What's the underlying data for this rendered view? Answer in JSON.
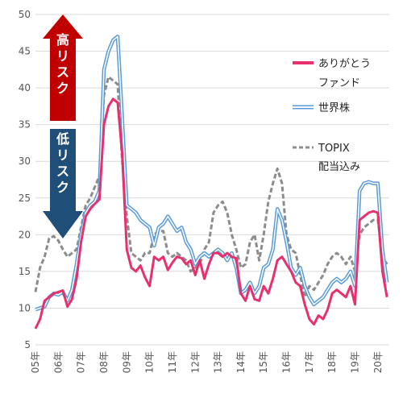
{
  "chart_data": {
    "type": "line",
    "ylim": [
      5,
      50
    ],
    "yticks": [
      5,
      10,
      15,
      20,
      25,
      30,
      35,
      40,
      45,
      50
    ],
    "grid": true,
    "legend_position": "right",
    "xtick_labels": [
      "05年",
      "06年",
      "07年",
      "08年",
      "09年",
      "10年",
      "11年",
      "12年",
      "13年",
      "14年",
      "15年",
      "16年",
      "17年",
      "18年",
      "19年",
      "20年"
    ],
    "risk_labels": {
      "high": "高リスク",
      "low": "低リスク"
    },
    "colors": {
      "arigatou": "#e8306e",
      "world": "#5b9bd5",
      "topix": "#8c8c8c",
      "high_arrow": "#c00000",
      "low_arrow": "#1f4e79"
    },
    "series": [
      {
        "name": "ありがとうファンド",
        "legend_lines": [
          "ありがとう",
          "ファンド"
        ],
        "style": "solid",
        "x": [
          2005.0,
          2005.2,
          2005.4,
          2005.6,
          2005.8,
          2006.0,
          2006.2,
          2006.4,
          2006.6,
          2006.8,
          2007.0,
          2007.2,
          2007.4,
          2007.6,
          2007.8,
          2008.0,
          2008.2,
          2008.4,
          2008.6,
          2008.8,
          2009.0,
          2009.2,
          2009.4,
          2009.6,
          2009.8,
          2010.0,
          2010.2,
          2010.4,
          2010.6,
          2010.8,
          2011.0,
          2011.2,
          2011.4,
          2011.6,
          2011.8,
          2012.0,
          2012.2,
          2012.4,
          2012.6,
          2012.8,
          2013.0,
          2013.2,
          2013.4,
          2013.6,
          2013.8,
          2014.0,
          2014.2,
          2014.4,
          2014.6,
          2014.8,
          2015.0,
          2015.2,
          2015.4,
          2015.6,
          2015.8,
          2016.0,
          2016.2,
          2016.4,
          2016.6,
          2016.8,
          2017.0,
          2017.2,
          2017.4,
          2017.6,
          2017.8,
          2018.0,
          2018.2,
          2018.4,
          2018.6,
          2018.8,
          2019.0,
          2019.2,
          2019.4,
          2019.6,
          2019.8,
          2020.0,
          2020.2,
          2020.4
        ],
        "values": [
          7.2,
          8.5,
          11.0,
          11.5,
          12.0,
          12.2,
          12.4,
          10.2,
          11.2,
          14.0,
          19.0,
          22.5,
          23.5,
          24.2,
          24.8,
          35.0,
          37.5,
          38.5,
          38.0,
          31.0,
          18.0,
          15.5,
          15.0,
          15.8,
          14.2,
          13.0,
          17.0,
          16.5,
          17.0,
          15.2,
          16.2,
          17.0,
          16.8,
          16.0,
          16.5,
          14.5,
          16.5,
          14.0,
          16.0,
          17.5,
          17.5,
          17.0,
          17.5,
          17.0,
          16.8,
          12.0,
          11.0,
          13.0,
          11.2,
          11.0,
          13.0,
          12.0,
          14.0,
          16.5,
          17.0,
          16.0,
          15.0,
          13.5,
          13.0,
          10.5,
          8.5,
          7.8,
          9.0,
          8.5,
          9.8,
          12.0,
          12.5,
          12.0,
          11.5,
          13.0,
          10.5,
          22.0,
          22.5,
          23.0,
          23.2,
          23.0,
          15.0,
          11.5
        ]
      },
      {
        "name": "世界株",
        "legend_lines": [
          "世界株"
        ],
        "style": "double",
        "x": [
          2005.0,
          2005.2,
          2005.4,
          2005.6,
          2005.8,
          2006.0,
          2006.2,
          2006.4,
          2006.6,
          2006.8,
          2007.0,
          2007.2,
          2007.4,
          2007.6,
          2007.8,
          2008.0,
          2008.2,
          2008.4,
          2008.6,
          2008.8,
          2009.0,
          2009.2,
          2009.4,
          2009.6,
          2009.8,
          2010.0,
          2010.2,
          2010.4,
          2010.6,
          2010.8,
          2011.0,
          2011.2,
          2011.4,
          2011.6,
          2011.8,
          2012.0,
          2012.2,
          2012.4,
          2012.6,
          2012.8,
          2013.0,
          2013.2,
          2013.4,
          2013.6,
          2013.8,
          2014.0,
          2014.2,
          2014.4,
          2014.6,
          2014.8,
          2015.0,
          2015.2,
          2015.4,
          2015.6,
          2015.8,
          2016.0,
          2016.2,
          2016.4,
          2016.6,
          2016.8,
          2017.0,
          2017.2,
          2017.4,
          2017.6,
          2017.8,
          2018.0,
          2018.2,
          2018.4,
          2018.6,
          2018.8,
          2019.0,
          2019.2,
          2019.4,
          2019.6,
          2019.8,
          2020.0,
          2020.2,
          2020.4
        ],
        "values": [
          9.8,
          10.0,
          10.2,
          11.5,
          12.0,
          11.8,
          12.2,
          11.0,
          12.5,
          16.0,
          20.0,
          23.0,
          24.0,
          24.5,
          26.0,
          42.5,
          45.0,
          46.5,
          47.0,
          36.0,
          24.0,
          23.5,
          23.0,
          22.0,
          21.5,
          21.0,
          18.5,
          21.0,
          21.5,
          22.5,
          21.5,
          20.5,
          21.0,
          19.0,
          18.0,
          16.0,
          17.0,
          17.5,
          17.0,
          17.5,
          18.0,
          17.5,
          16.5,
          17.5,
          15.5,
          12.0,
          12.5,
          13.5,
          12.0,
          13.0,
          15.5,
          16.0,
          18.0,
          23.5,
          22.0,
          19.0,
          15.5,
          14.5,
          15.5,
          13.0,
          11.5,
          10.5,
          11.0,
          11.5,
          12.5,
          13.5,
          14.0,
          13.5,
          14.0,
          15.0,
          13.0,
          26.0,
          27.0,
          27.2,
          27.0,
          27.0,
          18.0,
          13.5
        ]
      },
      {
        "name": "TOPIX配当込み",
        "legend_lines": [
          "TOPIX",
          "配当込み"
        ],
        "style": "dashed",
        "x": [
          2005.0,
          2005.2,
          2005.4,
          2005.6,
          2005.8,
          2006.0,
          2006.2,
          2006.4,
          2006.6,
          2006.8,
          2007.0,
          2007.2,
          2007.4,
          2007.6,
          2007.8,
          2008.0,
          2008.2,
          2008.4,
          2008.6,
          2008.8,
          2009.0,
          2009.2,
          2009.4,
          2009.6,
          2009.8,
          2010.0,
          2010.2,
          2010.4,
          2010.6,
          2010.8,
          2011.0,
          2011.2,
          2011.4,
          2011.6,
          2011.8,
          2012.0,
          2012.2,
          2012.4,
          2012.6,
          2012.8,
          2013.0,
          2013.2,
          2013.4,
          2013.6,
          2013.8,
          2014.0,
          2014.2,
          2014.4,
          2014.6,
          2014.8,
          2015.0,
          2015.2,
          2015.4,
          2015.6,
          2015.8,
          2016.0,
          2016.2,
          2016.4,
          2016.6,
          2016.8,
          2017.0,
          2017.2,
          2017.4,
          2017.6,
          2017.8,
          2018.0,
          2018.2,
          2018.4,
          2018.6,
          2018.8,
          2019.0,
          2019.2,
          2019.4,
          2019.6,
          2019.8,
          2020.0,
          2020.2,
          2020.4
        ],
        "values": [
          12.2,
          15.5,
          17.0,
          19.5,
          19.8,
          19.2,
          18.0,
          17.0,
          17.5,
          18.0,
          21.0,
          24.0,
          25.0,
          26.5,
          28.0,
          39.0,
          41.5,
          41.0,
          40.5,
          30.0,
          22.5,
          17.5,
          17.0,
          16.5,
          17.5,
          17.5,
          20.0,
          20.5,
          20.5,
          17.5,
          17.0,
          17.5,
          17.0,
          16.5,
          15.0,
          15.5,
          16.0,
          18.0,
          19.0,
          23.0,
          24.0,
          24.5,
          23.0,
          20.0,
          18.0,
          15.5,
          16.0,
          19.0,
          20.0,
          16.5,
          20.0,
          24.5,
          27.0,
          29.0,
          27.0,
          20.0,
          18.0,
          17.5,
          14.5,
          11.5,
          13.0,
          12.5,
          13.5,
          14.5,
          16.0,
          17.0,
          17.5,
          17.0,
          16.0,
          17.0,
          15.0,
          20.0,
          21.0,
          21.5,
          22.0,
          22.0,
          17.0,
          16.0
        ]
      }
    ]
  }
}
